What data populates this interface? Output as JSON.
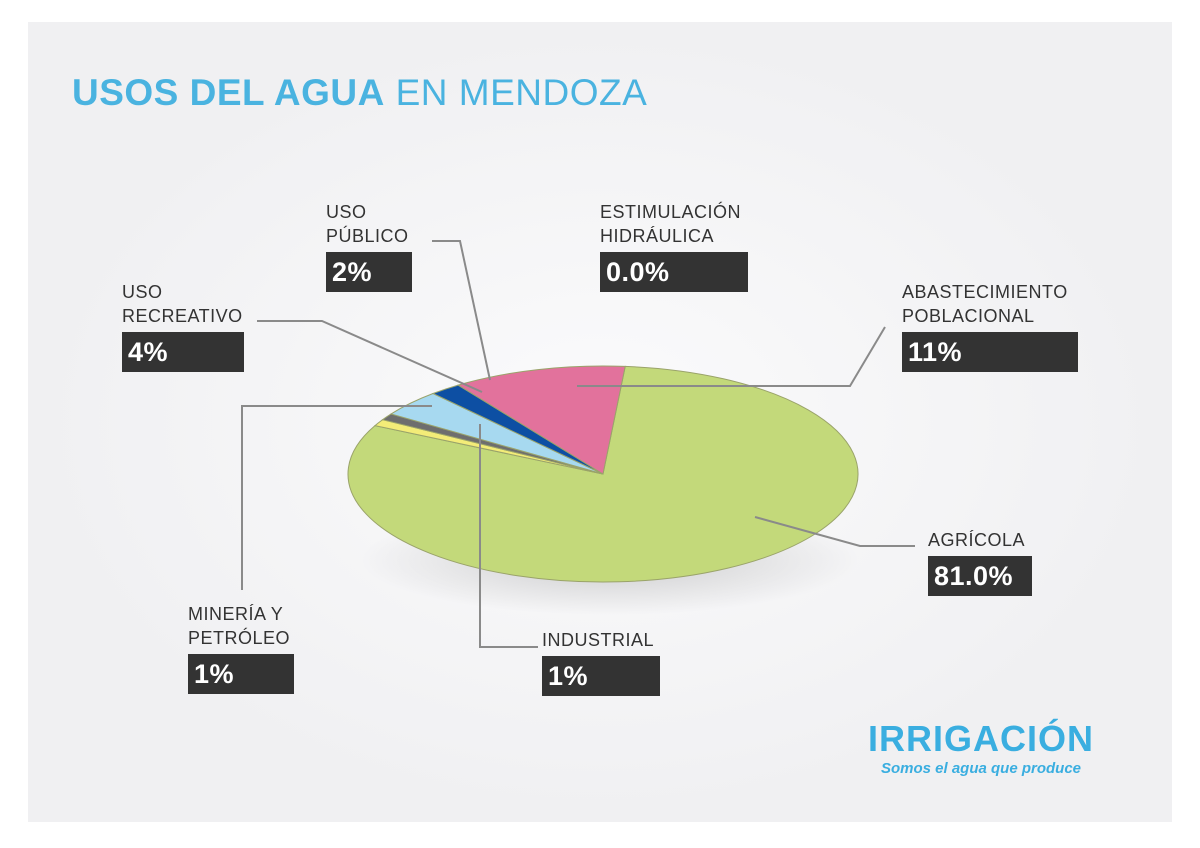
{
  "title": {
    "bold": "USOS DEL AGUA",
    "normal": "EN MENDOZA"
  },
  "chart_data": {
    "type": "pie",
    "title": "USOS DEL AGUA EN MENDOZA",
    "slices": [
      {
        "name": "AGRÍCOLA",
        "label": "81.0%",
        "value": 81.0,
        "color": "#c3d97a"
      },
      {
        "name": "INDUSTRIAL",
        "label": "1%",
        "value": 1,
        "color": "#f3ec78"
      },
      {
        "name": "MINERÍA Y PETRÓLEO",
        "label": "1%",
        "value": 1,
        "color": "#6e6e6e"
      },
      {
        "name": "USO RECREATIVO",
        "label": "4%",
        "value": 4,
        "color": "#a7d9f0"
      },
      {
        "name": "USO PÚBLICO",
        "label": "2%",
        "value": 2,
        "color": "#0d4fa3"
      },
      {
        "name": "ESTIMULACIÓN HIDRÁULICA",
        "label": "0.0%",
        "value": 0.0,
        "color": "#333333"
      },
      {
        "name": "ABASTECIMIENTO POBLACIONAL",
        "label": "11%",
        "value": 11,
        "color": "#e2729c"
      }
    ]
  },
  "labels": {
    "publico": {
      "line1": "USO",
      "line2": "PÚBLICO",
      "value": "2%"
    },
    "estimulacion": {
      "line1": "ESTIMULACIÓN",
      "line2": "HIDRÁULICA",
      "value": "0.0%"
    },
    "recreativo": {
      "line1": "USO",
      "line2": "RECREATIVO",
      "value": "4%"
    },
    "abastecimiento": {
      "line1": "ABASTECIMIENTO",
      "line2": "POBLACIONAL",
      "value": "11%"
    },
    "agricola": {
      "line1": "AGRÍCOLA",
      "value": "81.0%"
    },
    "mineria": {
      "line1": "MINERÍA Y",
      "line2": "PETRÓLEO",
      "value": "1%"
    },
    "industrial": {
      "line1": "INDUSTRIAL",
      "value": "1%"
    }
  },
  "logo": {
    "name": "IRRIGACIÓN",
    "tagline": "Somos el agua que produce"
  }
}
